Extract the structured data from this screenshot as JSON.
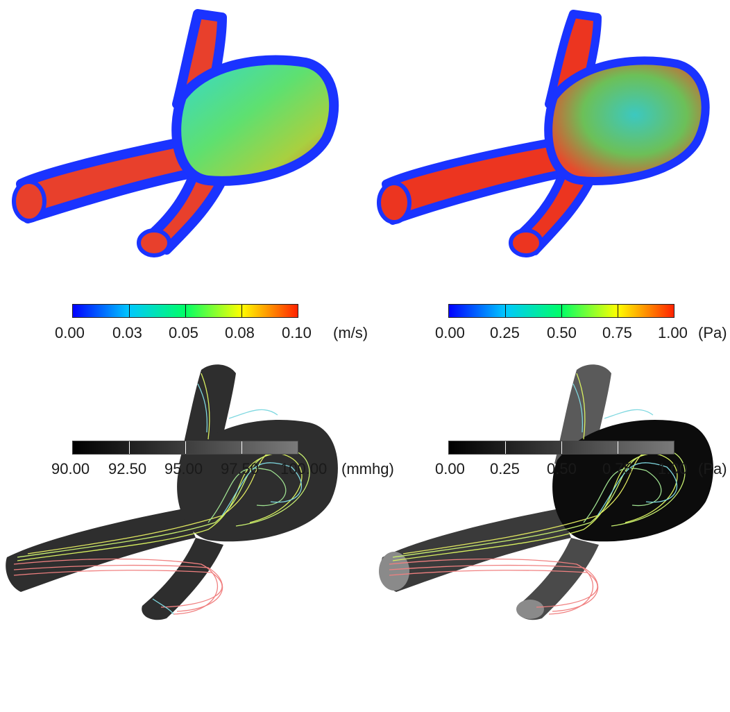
{
  "panels": {
    "velocity": {
      "ticks": [
        "0.00",
        "0.03",
        "0.05",
        "0.08",
        "0.10"
      ],
      "unit": "(m/s)",
      "colormap": [
        "#0000ff",
        "#00c8ff",
        "#00ff66",
        "#ffff00",
        "#ff2200"
      ]
    },
    "wss": {
      "ticks": [
        "0.00",
        "0.25",
        "0.50",
        "0.75",
        "1.00"
      ],
      "unit": "(Pa)",
      "colormap": [
        "#0000ff",
        "#00c8ff",
        "#00ff66",
        "#ffff00",
        "#ff2200"
      ]
    },
    "pressure": {
      "ticks": [
        "90.00",
        "92.50",
        "95.00",
        "97.50",
        "100.00"
      ],
      "unit": "(mmhg)",
      "colormap": [
        "#000000",
        "#7a7a7a"
      ]
    },
    "wss_gray": {
      "ticks": [
        "0.00",
        "0.25",
        "0.50",
        "0.75",
        "1.00"
      ],
      "unit": "(Pa)",
      "colormap": [
        "#000000",
        "#7a7a7a"
      ]
    }
  },
  "colors": {
    "streamline_inflow": "#f08080",
    "streamline_mid": "#d8f060",
    "streamline_slow": "#7fd8e0"
  }
}
